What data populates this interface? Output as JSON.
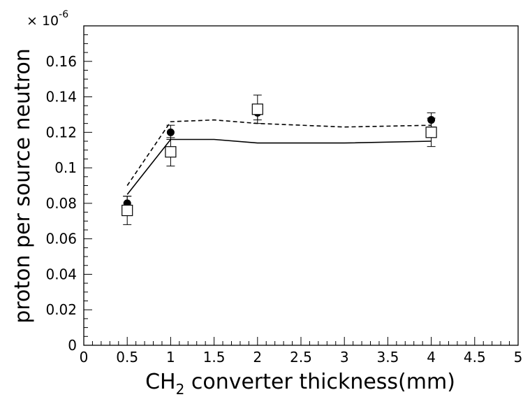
{
  "chart_data": {
    "type": "scatter",
    "xlabel_prefix": "CH",
    "xlabel_subscript": "2",
    "xlabel_suffix": " converter thickness(mm)",
    "ylabel": "proton per source neutron",
    "y_scale_base": "× 10",
    "y_scale_exponent": "-6",
    "xlim": [
      0,
      5
    ],
    "ylim": [
      0,
      0.18
    ],
    "x_tick_labels": [
      "0",
      "0.5",
      "1",
      "1.5",
      "2",
      "2.5",
      "3",
      "3.5",
      "4",
      "4.5",
      "5"
    ],
    "y_tick_labels": [
      "0",
      "0.02",
      "0.04",
      "0.06",
      "0.08",
      "0.1",
      "0.12",
      "0.14",
      "0.16"
    ],
    "grid": false,
    "series": [
      {
        "marker": "filled-circle",
        "points": [
          {
            "x": 0.5,
            "y": 0.08,
            "err": 0.004
          },
          {
            "x": 1.0,
            "y": 0.12,
            "err": 0.004
          },
          {
            "x": 2.0,
            "y": 0.131,
            "err": 0.004
          },
          {
            "x": 4.0,
            "y": 0.127,
            "err": 0.004
          }
        ]
      },
      {
        "marker": "open-square",
        "points": [
          {
            "x": 0.5,
            "y": 0.076,
            "err": 0.008
          },
          {
            "x": 1.0,
            "y": 0.109,
            "err": 0.008
          },
          {
            "x": 2.0,
            "y": 0.133,
            "err": 0.008
          },
          {
            "x": 4.0,
            "y": 0.12,
            "err": 0.008
          }
        ]
      }
    ],
    "lines": [
      {
        "style": "solid",
        "x": [
          0.5,
          1.0,
          1.5,
          2.0,
          3.0,
          4.0
        ],
        "y": [
          0.085,
          0.116,
          0.116,
          0.114,
          0.114,
          0.115
        ]
      },
      {
        "style": "dashed",
        "x": [
          0.5,
          1.0,
          1.5,
          2.0,
          3.0,
          4.0
        ],
        "y": [
          0.09,
          0.126,
          0.127,
          0.125,
          0.123,
          0.124
        ]
      }
    ]
  }
}
